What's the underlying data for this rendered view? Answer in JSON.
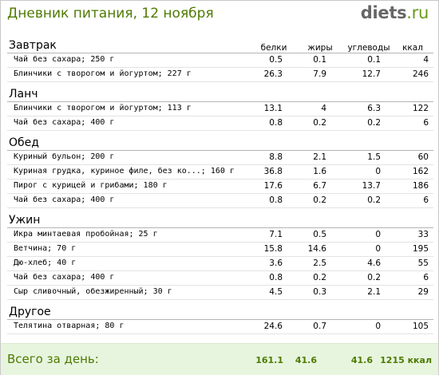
{
  "header": {
    "title": "Дневник питания, 12 ноября",
    "logo_main": "diets",
    "logo_tld": ".ru"
  },
  "columns": [
    "белки",
    "жиры",
    "углеводы",
    "ккал"
  ],
  "categories": [
    {
      "title": "Завтрак",
      "rows": [
        {
          "name": "Чай без сахара; 250 г",
          "protein": "0.5",
          "fat": "0.1",
          "carbs": "0.1",
          "kcal": "4"
        },
        {
          "name": "Блинчики с творогом и йогуртом; 227 г",
          "protein": "26.3",
          "fat": "7.9",
          "carbs": "12.7",
          "kcal": "246"
        }
      ]
    },
    {
      "title": "Ланч",
      "rows": [
        {
          "name": "Блинчики с творогом и йогуртом; 113 г",
          "protein": "13.1",
          "fat": "4",
          "carbs": "6.3",
          "kcal": "122"
        },
        {
          "name": "Чай без сахара; 400 г",
          "protein": "0.8",
          "fat": "0.2",
          "carbs": "0.2",
          "kcal": "6"
        }
      ]
    },
    {
      "title": "Обед",
      "rows": [
        {
          "name": "Куриный бульон; 200 г",
          "protein": "8.8",
          "fat": "2.1",
          "carbs": "1.5",
          "kcal": "60"
        },
        {
          "name": "Куриная грудка, куриное филе, без ко...; 160 г",
          "protein": "36.8",
          "fat": "1.6",
          "carbs": "0",
          "kcal": "162"
        },
        {
          "name": "Пирог с курицей и грибами; 180 г",
          "protein": "17.6",
          "fat": "6.7",
          "carbs": "13.7",
          "kcal": "186"
        },
        {
          "name": "Чай без сахара; 400 г",
          "protein": "0.8",
          "fat": "0.2",
          "carbs": "0.2",
          "kcal": "6"
        }
      ]
    },
    {
      "title": "Ужин",
      "rows": [
        {
          "name": "Икра минтаевая пробойная; 25 г",
          "protein": "7.1",
          "fat": "0.5",
          "carbs": "0",
          "kcal": "33"
        },
        {
          "name": "Ветчина; 70 г",
          "protein": "15.8",
          "fat": "14.6",
          "carbs": "0",
          "kcal": "195"
        },
        {
          "name": "Дю-хлеб; 40 г",
          "protein": "3.6",
          "fat": "2.5",
          "carbs": "4.6",
          "kcal": "55"
        },
        {
          "name": "Чай без сахара; 400 г",
          "protein": "0.8",
          "fat": "0.2",
          "carbs": "0.2",
          "kcal": "6"
        },
        {
          "name": "Сыр сливочный, обезжиренный; 30 г",
          "protein": "4.5",
          "fat": "0.3",
          "carbs": "2.1",
          "kcal": "29"
        }
      ]
    },
    {
      "title": "Другое",
      "rows": [
        {
          "name": "Телятина отварная; 80 г",
          "protein": "24.6",
          "fat": "0.7",
          "carbs": "0",
          "kcal": "105"
        }
      ]
    }
  ],
  "totals": {
    "label": "Всего за день:",
    "protein": "161.1",
    "fat": "41.6",
    "carbs": "41.6",
    "kcal": "1215 ккал"
  },
  "colors": {
    "accent_green": "#4e7a00",
    "totals_bg": "#e7f5df"
  }
}
